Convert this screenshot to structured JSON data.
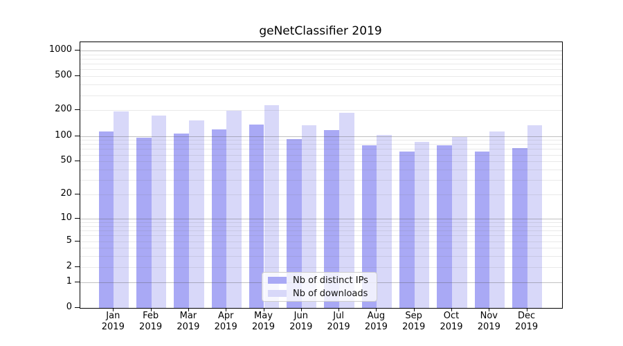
{
  "chart_data": {
    "type": "bar",
    "title": "geNetClassifier 2019",
    "categories": [
      "Jan",
      "Feb",
      "Mar",
      "Apr",
      "May",
      "Jun",
      "Jul",
      "Aug",
      "Sep",
      "Oct",
      "Nov",
      "Dec"
    ],
    "x_year": "2019",
    "series": [
      {
        "name": "Nb of distinct IPs",
        "color": "#a9a9f5",
        "values": [
          113,
          96,
          107,
          120,
          137,
          92,
          118,
          77,
          66,
          77,
          65,
          72
        ]
      },
      {
        "name": "Nb of downloads",
        "color": "#d8d8f9",
        "values": [
          196,
          174,
          153,
          198,
          231,
          133,
          188,
          103,
          86,
          97,
          112,
          134
        ]
      }
    ],
    "y_axis": {
      "scale": "log1p",
      "ticks": [
        0,
        1,
        2,
        5,
        10,
        20,
        50,
        100,
        200,
        500,
        1000
      ],
      "tick_labels": [
        "0",
        "1",
        "2",
        "5",
        "10",
        "20",
        "50",
        "100",
        "200",
        "500",
        "1000"
      ],
      "major_gridlines": [
        1,
        10,
        100,
        1000
      ],
      "minor_gridlines": [
        2,
        3,
        4,
        5,
        6,
        7,
        8,
        9,
        20,
        30,
        40,
        50,
        60,
        70,
        80,
        90,
        200,
        300,
        400,
        500,
        600,
        700,
        800,
        900
      ],
      "max": 1245
    },
    "legend": {
      "position": "bottom-center"
    },
    "palette": {
      "bar_distinct_ips": "#a9a9f5",
      "bar_downloads": "#d8d8f9",
      "grid_major": "#a6a6a6",
      "grid_minor": "#e8e8e8",
      "axis": "#000000",
      "legend_border": "#cccccc",
      "background": "#ffffff"
    }
  }
}
